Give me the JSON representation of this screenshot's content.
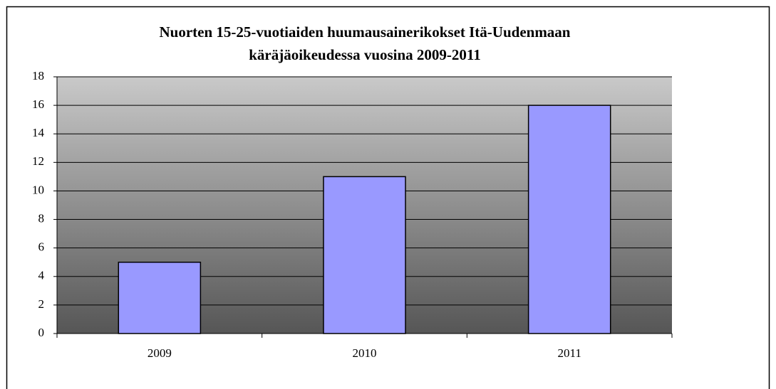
{
  "chart_data": {
    "type": "bar",
    "title": [
      "Nuorten 15-25-vuotiaiden huumausainerikokset Itä-Uudenmaan",
      "käräjäoikeudessa vuosina 2009-2011"
    ],
    "categories": [
      "2009",
      "2010",
      "2011"
    ],
    "values": [
      5,
      11,
      16
    ],
    "color": "#9999ff",
    "ylim": [
      0,
      18
    ],
    "yticks": [
      0,
      2,
      4,
      6,
      8,
      10,
      12,
      14,
      16,
      18
    ],
    "grid": true
  }
}
